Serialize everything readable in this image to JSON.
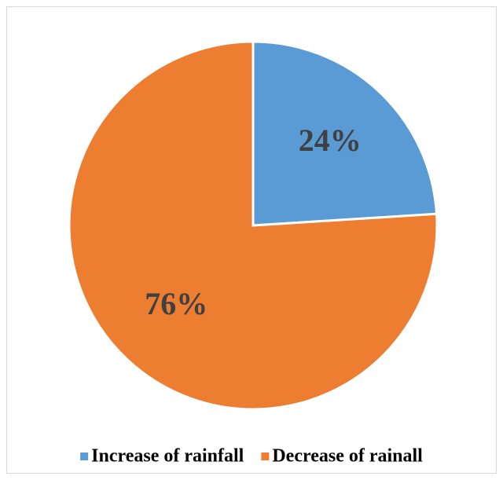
{
  "chart_data": {
    "type": "pie",
    "categories": [
      "Increase of rainfall",
      "Decrease of rainall"
    ],
    "values": [
      24,
      76
    ],
    "value_labels": [
      "24%",
      "76%"
    ],
    "colors": [
      "#5b9bd5",
      "#ed7d31"
    ],
    "legend": "bottom"
  }
}
